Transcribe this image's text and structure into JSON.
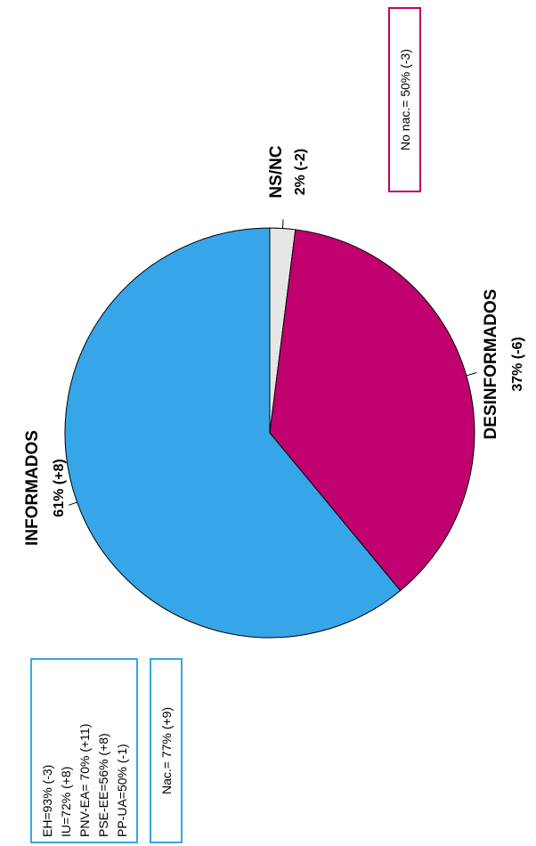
{
  "chart_data": {
    "type": "pie",
    "slices": [
      {
        "label": "NS/NC",
        "value": 2,
        "display": "2% (-2)",
        "color": "#e6e6e6"
      },
      {
        "label": "DESINFORMADOS",
        "value": 37,
        "display": "37% (-6)",
        "color": "#c0006f"
      },
      {
        "label": "INFORMADOS",
        "value": 61,
        "display": "61% (+8)",
        "color": "#36a6e8"
      }
    ],
    "slice_outline_color": "#000000"
  },
  "annotations": {
    "party_breakdown": {
      "lines": [
        "EH=93% (-3)",
        "IU=72% (+8)",
        "PNV-EA= 70% (+11)",
        "PSE-EE=56% (+8)",
        "PP-UA=50% (-1)"
      ],
      "border_color": "#36a6e8"
    },
    "nationalist": {
      "lines": [
        "Nac.= 77% (+9)"
      ],
      "border_color": "#36a6e8"
    },
    "non_nationalist": {
      "lines": [
        "No nac.= 50% (-3)"
      ],
      "border_color": "#c0006f"
    }
  }
}
